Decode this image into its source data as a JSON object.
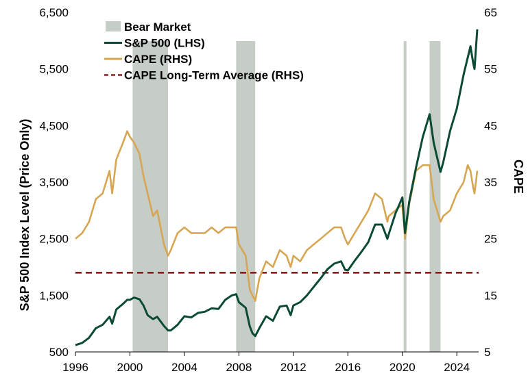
{
  "chart_data": {
    "type": "line",
    "colors": {
      "sp500": "#0b4a34",
      "cape": "#d6a653",
      "cape_avg": "#8b1c1c",
      "bear": "#c5cdc6"
    },
    "x_axis": {
      "ticks": [
        "1996",
        "2000",
        "2004",
        "2008",
        "2012",
        "2016",
        "2020",
        "2024"
      ],
      "range": [
        1996,
        2025.6
      ]
    },
    "y_left": {
      "label": "S&P 500 Index Level (Price Only)",
      "ticks": [
        "500",
        "1,500",
        "2,500",
        "3,500",
        "4,500",
        "5,500",
        "6,500"
      ],
      "range": [
        500,
        6500
      ]
    },
    "y_right": {
      "label": "CAPE",
      "ticks": [
        "5",
        "15",
        "25",
        "35",
        "45",
        "55",
        "65"
      ],
      "range": [
        5,
        65
      ]
    },
    "legend": {
      "placement": "top-left",
      "items": [
        {
          "label": "Bear Market",
          "key": "bear"
        },
        {
          "label": "S&P 500 (LHS)",
          "key": "sp500"
        },
        {
          "label": "CAPE (RHS)",
          "key": "cape"
        },
        {
          "label": "CAPE Long-Term Average (RHS)",
          "key": "cape_avg"
        }
      ]
    },
    "bear_markets": [
      {
        "start": 2000.2,
        "end": 2002.8
      },
      {
        "start": 2007.8,
        "end": 2009.2
      },
      {
        "start": 2020.1,
        "end": 2020.3
      },
      {
        "start": 2022.0,
        "end": 2022.8
      }
    ],
    "cape_long_term_average": 19,
    "series": [
      {
        "key": "sp500",
        "axis": "left",
        "x": [
          1996.0,
          1996.5,
          1997.0,
          1997.5,
          1998.0,
          1998.5,
          1998.7,
          1999.0,
          1999.5,
          1999.8,
          2000.0,
          2000.3,
          2000.7,
          2001.0,
          2001.3,
          2001.7,
          2002.0,
          2002.5,
          2002.8,
          2003.0,
          2003.5,
          2004.0,
          2004.5,
          2005.0,
          2005.5,
          2006.0,
          2006.5,
          2007.0,
          2007.5,
          2007.8,
          2008.0,
          2008.5,
          2008.8,
          2009.0,
          2009.2,
          2009.5,
          2010.0,
          2010.5,
          2011.0,
          2011.5,
          2011.8,
          2012.0,
          2012.5,
          2013.0,
          2013.5,
          2014.0,
          2014.5,
          2015.0,
          2015.5,
          2015.8,
          2016.0,
          2016.5,
          2017.0,
          2017.5,
          2018.0,
          2018.5,
          2018.9,
          2019.0,
          2019.5,
          2020.0,
          2020.2,
          2020.5,
          2021.0,
          2021.5,
          2022.0,
          2022.3,
          2022.8,
          2023.0,
          2023.5,
          2024.0,
          2024.5,
          2024.8,
          2025.0,
          2025.2,
          2025.3,
          2025.5
        ],
        "values": [
          620,
          660,
          750,
          920,
          980,
          1120,
          1000,
          1250,
          1350,
          1420,
          1420,
          1460,
          1430,
          1320,
          1150,
          1080,
          1120,
          960,
          880,
          880,
          980,
          1130,
          1110,
          1190,
          1210,
          1270,
          1260,
          1420,
          1500,
          1520,
          1380,
          1280,
          950,
          830,
          780,
          920,
          1130,
          1050,
          1300,
          1320,
          1150,
          1320,
          1380,
          1500,
          1650,
          1800,
          1960,
          2060,
          2100,
          1950,
          1940,
          2110,
          2270,
          2440,
          2750,
          2750,
          2500,
          2580,
          2950,
          3230,
          2600,
          3150,
          3750,
          4300,
          4700,
          4200,
          3680,
          3850,
          4400,
          4800,
          5400,
          5700,
          5900,
          5600,
          5500,
          6200
        ]
      },
      {
        "key": "cape",
        "axis": "right",
        "x": [
          1996.0,
          1996.5,
          1997.0,
          1997.5,
          1998.0,
          1998.5,
          1998.7,
          1999.0,
          1999.5,
          1999.8,
          2000.0,
          2000.3,
          2000.7,
          2001.0,
          2001.3,
          2001.7,
          2002.0,
          2002.5,
          2002.8,
          2003.0,
          2003.5,
          2004.0,
          2004.5,
          2005.0,
          2005.5,
          2006.0,
          2006.5,
          2007.0,
          2007.5,
          2007.8,
          2008.0,
          2008.5,
          2008.8,
          2009.0,
          2009.2,
          2009.5,
          2010.0,
          2010.5,
          2011.0,
          2011.5,
          2011.8,
          2012.0,
          2012.5,
          2013.0,
          2013.5,
          2014.0,
          2014.5,
          2015.0,
          2015.5,
          2015.8,
          2016.0,
          2016.5,
          2017.0,
          2017.5,
          2018.0,
          2018.5,
          2018.9,
          2019.0,
          2019.5,
          2020.0,
          2020.2,
          2020.5,
          2021.0,
          2021.5,
          2022.0,
          2022.3,
          2022.8,
          2023.0,
          2023.5,
          2024.0,
          2024.5,
          2024.8,
          2025.0,
          2025.2,
          2025.3,
          2025.5
        ],
        "values": [
          25,
          26,
          28,
          32,
          33,
          37,
          33,
          39,
          42,
          44,
          43,
          42,
          40,
          36,
          33,
          29,
          30,
          24,
          22,
          23,
          26,
          27,
          26,
          26,
          26,
          27,
          26,
          27,
          27,
          27,
          24,
          22,
          16,
          15,
          14,
          18,
          21,
          20,
          23,
          22,
          20,
          22,
          21,
          23,
          24,
          25,
          26,
          27,
          27,
          25,
          24,
          26,
          28,
          30,
          33,
          32,
          28,
          29,
          30,
          31,
          25,
          31,
          37,
          38,
          38,
          32,
          28,
          29,
          30,
          33,
          35,
          38,
          37,
          34,
          33,
          37
        ]
      }
    ]
  }
}
